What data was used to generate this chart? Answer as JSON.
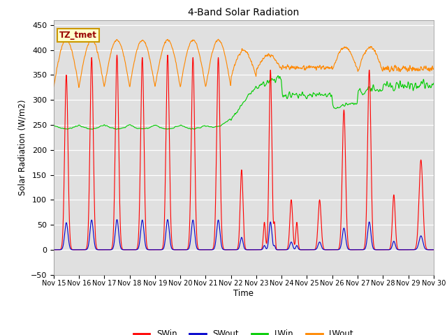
{
  "title": "4-Band Solar Radiation",
  "xlabel": "Time",
  "ylabel": "Solar Radiation (W/m2)",
  "ylim": [
    -50,
    460
  ],
  "yticks": [
    -50,
    0,
    50,
    100,
    150,
    200,
    250,
    300,
    350,
    400,
    450
  ],
  "bg_color": "#e0e0e0",
  "legend_labels": [
    "SWin",
    "SWout",
    "LWin",
    "LWout"
  ],
  "legend_colors": [
    "#ff0000",
    "#0000cc",
    "#00cc00",
    "#ff8800"
  ],
  "annotation_text": "TZ_tmet",
  "annotation_bg": "#ffffcc",
  "annotation_border": "#cc9900",
  "annotation_text_color": "#990000",
  "line_width": 0.8,
  "tick_labels": [
    "Nov 15",
    "Nov 16",
    "Nov 17",
    "Nov 18",
    "Nov 19",
    "Nov 20",
    "Nov 21",
    "Nov 22",
    "Nov 23",
    "Nov 24",
    "Nov 25",
    "Nov 26",
    "Nov 27",
    "Nov 28",
    "Nov 29",
    "Nov 30"
  ],
  "num_days": 15,
  "points_per_day": 480
}
